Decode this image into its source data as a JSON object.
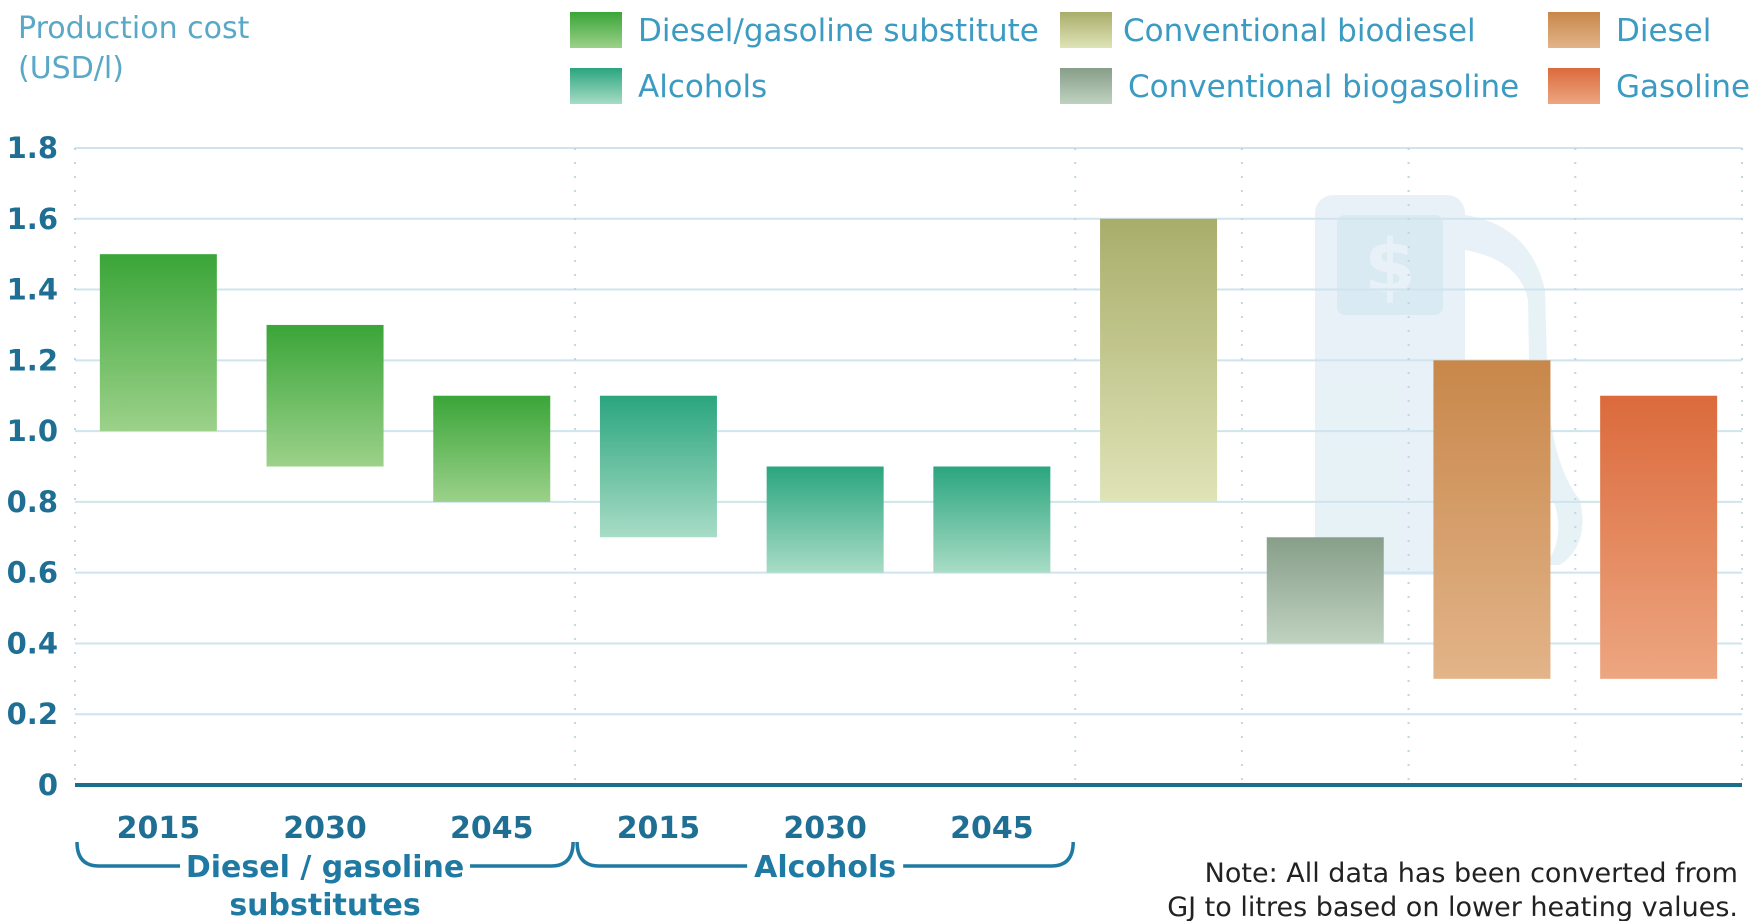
{
  "chart_data": {
    "type": "bar",
    "subtype": "floating-range",
    "ylabel": [
      "Production cost",
      "(USD/l)"
    ],
    "ylim": [
      0,
      1.8
    ],
    "yticks": [
      "0",
      "0.2",
      "0.4",
      "0.6",
      "0.8",
      "1.0",
      "1.2",
      "1.4",
      "1.6",
      "1.8"
    ],
    "grid": true,
    "legend_position": "top",
    "legend": [
      {
        "name": "Diesel/gasoline substitute",
        "color_top": "#3aa538",
        "color_bottom": "#9cd18a"
      },
      {
        "name": "Alcohols",
        "color_top": "#2aa57e",
        "color_bottom": "#a8dcc6"
      },
      {
        "name": "Conventional biodiesel",
        "color_top": "#a9ad6a",
        "color_bottom": "#dfe4b8"
      },
      {
        "name": "Conventional biogasoline",
        "color_top": "#879e89",
        "color_bottom": "#bfd2c0"
      },
      {
        "name": "Diesel",
        "color_top": "#c8874a",
        "color_bottom": "#e2b489"
      },
      {
        "name": "Gasoline",
        "color_top": "#db6a3c",
        "color_bottom": "#eda681"
      }
    ],
    "bars": [
      {
        "category": "2015",
        "series": "Diesel/gasoline substitute",
        "low": 1.0,
        "high": 1.5
      },
      {
        "category": "2030",
        "series": "Diesel/gasoline substitute",
        "low": 0.9,
        "high": 1.3
      },
      {
        "category": "2045",
        "series": "Diesel/gasoline substitute",
        "low": 0.8,
        "high": 1.1
      },
      {
        "category": "2015",
        "series": "Alcohols",
        "low": 0.7,
        "high": 1.1
      },
      {
        "category": "2030",
        "series": "Alcohols",
        "low": 0.6,
        "high": 0.9
      },
      {
        "category": "2045",
        "series": "Alcohols",
        "low": 0.6,
        "high": 0.9
      },
      {
        "category": "",
        "series": "Conventional biodiesel",
        "low": 0.8,
        "high": 1.6
      },
      {
        "category": "",
        "series": "Conventional biogasoline",
        "low": 0.4,
        "high": 0.7
      },
      {
        "category": "",
        "series": "Diesel",
        "low": 0.3,
        "high": 1.2
      },
      {
        "category": "",
        "series": "Gasoline",
        "low": 0.3,
        "high": 1.1
      }
    ],
    "groups": [
      {
        "label": [
          "Diesel / gasoline",
          "substitutes"
        ],
        "from": 0,
        "to": 2
      },
      {
        "label": [
          "Alcohols"
        ],
        "from": 3,
        "to": 5
      }
    ],
    "note": [
      "Note: All data has been converted from",
      "GJ to litres based on lower heating values."
    ]
  }
}
